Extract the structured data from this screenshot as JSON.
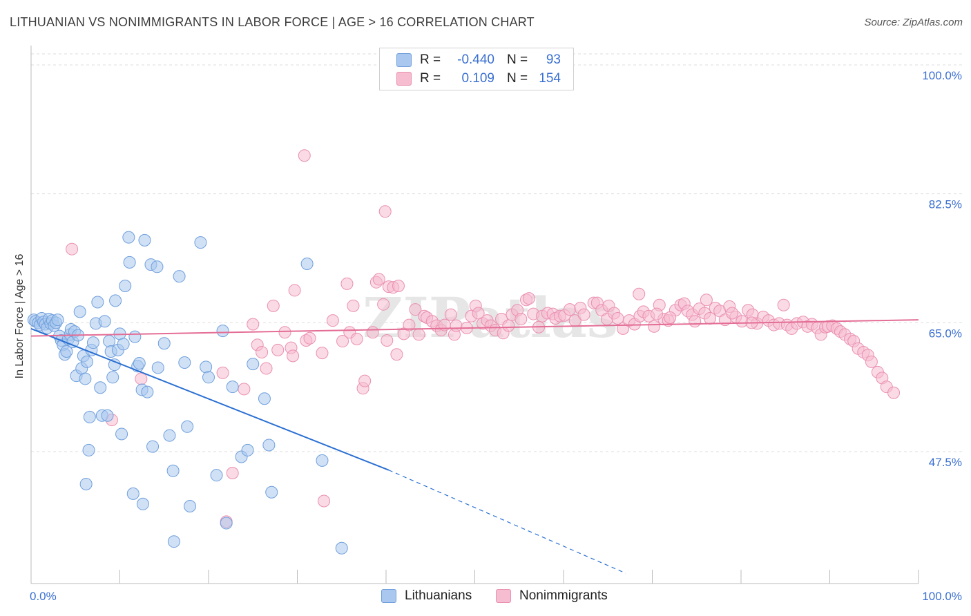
{
  "title": "LITHUANIAN VS NONIMMIGRANTS IN LABOR FORCE | AGE > 16 CORRELATION CHART",
  "source": "Source: ZipAtlas.com",
  "watermark": "ZIPatlas",
  "legend": {
    "rows": [
      {
        "r_label": "R =",
        "r_value": "-0.440",
        "n_label": "N =",
        "n_value": "93"
      },
      {
        "r_label": "R =",
        "r_value": "0.109",
        "n_label": "N =",
        "n_value": "154"
      }
    ]
  },
  "bottom_legend": [
    "Lithuanians",
    "Nonimmigrants"
  ],
  "colors": {
    "blue_fill": "#aac8ef",
    "blue_stroke": "#6f9fdc",
    "blue_line": "#2a6fd3",
    "pink_fill": "#f6bcd0",
    "pink_stroke": "#ea90b1",
    "pink_line": "#e46d95",
    "axis_text": "#3a6fd1",
    "grid": "#dddddd"
  },
  "chart_data": {
    "type": "scatter",
    "title": "LITHUANIAN VS NONIMMIGRANTS IN LABOR FORCE | AGE > 16 CORRELATION CHART",
    "xlabel": "",
    "ylabel": "In Labor Force | Age > 16",
    "xlim": [
      0,
      100
    ],
    "ylim": [
      29.6,
      101.5
    ],
    "x_tick_labels": [
      "0.0%",
      "100.0%"
    ],
    "y_ticks": [
      47.5,
      65.0,
      82.5,
      100.0
    ],
    "y_tick_labels": [
      "47.5%",
      "65.0%",
      "82.5%",
      "100.0%"
    ],
    "series": [
      {
        "name": "Lithuanians",
        "r": -0.44,
        "n": 93,
        "trend": {
          "x0": 0,
          "y0": 64.2,
          "x1": 40.3,
          "y1": 45.0,
          "dash_to_x": 67.0,
          "dash_to_y": 31.0
        },
        "points": [
          [
            0.3,
            65.4
          ],
          [
            0.5,
            65.2
          ],
          [
            0.8,
            65.0
          ],
          [
            1.0,
            64.7
          ],
          [
            1.2,
            65.6
          ],
          [
            1.4,
            65.1
          ],
          [
            1.6,
            64.8
          ],
          [
            1.8,
            64.3
          ],
          [
            2.0,
            65.5
          ],
          [
            2.2,
            64.9
          ],
          [
            2.4,
            65.3
          ],
          [
            2.6,
            64.6
          ],
          [
            2.8,
            65.0
          ],
          [
            3.0,
            65.4
          ],
          [
            3.2,
            63.2
          ],
          [
            3.4,
            62.6
          ],
          [
            3.6,
            62.0
          ],
          [
            3.8,
            60.7
          ],
          [
            4.0,
            61.1
          ],
          [
            4.2,
            62.8
          ],
          [
            4.4,
            63.4
          ],
          [
            4.5,
            64.1
          ],
          [
            4.7,
            62.4
          ],
          [
            4.9,
            63.8
          ],
          [
            5.1,
            57.8
          ],
          [
            5.3,
            63.3
          ],
          [
            5.5,
            66.5
          ],
          [
            5.7,
            58.8
          ],
          [
            5.9,
            60.5
          ],
          [
            6.1,
            57.4
          ],
          [
            6.3,
            59.7
          ],
          [
            6.5,
            47.7
          ],
          [
            6.2,
            43.1
          ],
          [
            6.8,
            61.3
          ],
          [
            7.0,
            62.3
          ],
          [
            6.6,
            52.2
          ],
          [
            7.3,
            64.9
          ],
          [
            7.5,
            67.8
          ],
          [
            7.8,
            56.2
          ],
          [
            8.0,
            52.4
          ],
          [
            8.3,
            65.2
          ],
          [
            8.6,
            52.4
          ],
          [
            8.8,
            62.5
          ],
          [
            9.0,
            61.1
          ],
          [
            9.2,
            57.6
          ],
          [
            9.4,
            59.3
          ],
          [
            9.5,
            68.0
          ],
          [
            9.8,
            61.3
          ],
          [
            10.0,
            63.5
          ],
          [
            10.2,
            49.9
          ],
          [
            10.4,
            62.1
          ],
          [
            10.6,
            70.0
          ],
          [
            11.0,
            76.6
          ],
          [
            11.1,
            73.2
          ],
          [
            11.5,
            41.8
          ],
          [
            11.7,
            63.1
          ],
          [
            12.0,
            59.1
          ],
          [
            12.2,
            59.5
          ],
          [
            12.5,
            55.9
          ],
          [
            12.8,
            76.2
          ],
          [
            12.6,
            40.4
          ],
          [
            13.1,
            55.6
          ],
          [
            13.5,
            72.9
          ],
          [
            14.2,
            72.6
          ],
          [
            13.7,
            48.2
          ],
          [
            14.3,
            58.9
          ],
          [
            15.0,
            62.2
          ],
          [
            15.6,
            49.7
          ],
          [
            16.0,
            44.9
          ],
          [
            16.1,
            35.3
          ],
          [
            16.7,
            71.3
          ],
          [
            17.3,
            59.6
          ],
          [
            17.6,
            50.9
          ],
          [
            17.9,
            40.1
          ],
          [
            19.1,
            75.9
          ],
          [
            19.7,
            59.0
          ],
          [
            20.0,
            57.6
          ],
          [
            20.9,
            44.3
          ],
          [
            21.6,
            63.9
          ],
          [
            22.0,
            37.8
          ],
          [
            22.7,
            56.3
          ],
          [
            23.7,
            46.8
          ],
          [
            24.4,
            47.7
          ],
          [
            25.0,
            59.4
          ],
          [
            26.3,
            54.7
          ],
          [
            26.8,
            48.4
          ],
          [
            27.1,
            42.0
          ],
          [
            31.1,
            73.0
          ],
          [
            32.8,
            46.3
          ],
          [
            35.0,
            34.4
          ]
        ]
      },
      {
        "name": "Nonimmigrants",
        "r": 0.109,
        "n": 154,
        "trend": {
          "x0": 0,
          "y0": 63.2,
          "x1": 100,
          "y1": 65.4
        },
        "points": [
          [
            4.6,
            75.0
          ],
          [
            9.1,
            51.8
          ],
          [
            12.4,
            57.4
          ],
          [
            21.6,
            58.2
          ],
          [
            22.0,
            38.0
          ],
          [
            22.7,
            44.6
          ],
          [
            24.0,
            56.0
          ],
          [
            25.0,
            64.8
          ],
          [
            25.5,
            62.0
          ],
          [
            26.0,
            61.0
          ],
          [
            26.5,
            58.8
          ],
          [
            27.3,
            67.3
          ],
          [
            27.8,
            61.3
          ],
          [
            28.6,
            63.7
          ],
          [
            29.3,
            61.6
          ],
          [
            29.5,
            60.5
          ],
          [
            29.7,
            69.4
          ],
          [
            30.8,
            87.7
          ],
          [
            31.0,
            62.6
          ],
          [
            31.4,
            62.9
          ],
          [
            32.8,
            60.9
          ],
          [
            33.0,
            40.8
          ],
          [
            34.0,
            65.3
          ],
          [
            35.1,
            62.5
          ],
          [
            35.6,
            70.3
          ],
          [
            35.9,
            63.7
          ],
          [
            36.3,
            67.3
          ],
          [
            36.7,
            62.8
          ],
          [
            37.4,
            56.1
          ],
          [
            37.6,
            57.1
          ],
          [
            38.5,
            63.7
          ],
          [
            38.9,
            70.5
          ],
          [
            39.2,
            70.9
          ],
          [
            39.7,
            67.5
          ],
          [
            39.9,
            80.1
          ],
          [
            40.1,
            62.6
          ],
          [
            40.3,
            69.9
          ],
          [
            40.8,
            69.8
          ],
          [
            41.4,
            70.0
          ],
          [
            41.2,
            60.7
          ],
          [
            42.0,
            63.5
          ],
          [
            42.6,
            64.7
          ],
          [
            43.3,
            66.8
          ],
          [
            43.7,
            63.4
          ],
          [
            44.3,
            65.9
          ],
          [
            44.6,
            65.7
          ],
          [
            45.2,
            65.2
          ],
          [
            45.7,
            64.6
          ],
          [
            46.2,
            64.0
          ],
          [
            46.6,
            64.7
          ],
          [
            47.3,
            66.1
          ],
          [
            47.7,
            63.4
          ],
          [
            47.9,
            64.6
          ],
          [
            49.1,
            64.3
          ],
          [
            49.6,
            65.9
          ],
          [
            50.1,
            67.3
          ],
          [
            50.4,
            66.3
          ],
          [
            50.9,
            64.9
          ],
          [
            51.4,
            65.3
          ],
          [
            51.8,
            64.6
          ],
          [
            52.3,
            64.0
          ],
          [
            53.0,
            65.5
          ],
          [
            53.2,
            63.6
          ],
          [
            53.8,
            64.6
          ],
          [
            54.2,
            66.1
          ],
          [
            54.8,
            66.7
          ],
          [
            55.2,
            65.5
          ],
          [
            55.8,
            68.1
          ],
          [
            56.1,
            68.3
          ],
          [
            56.6,
            66.2
          ],
          [
            57.2,
            64.4
          ],
          [
            57.6,
            65.9
          ],
          [
            58.2,
            66.3
          ],
          [
            58.8,
            66.2
          ],
          [
            59.1,
            65.6
          ],
          [
            59.6,
            65.9
          ],
          [
            60.1,
            66.0
          ],
          [
            60.7,
            66.8
          ],
          [
            61.3,
            65.3
          ],
          [
            61.9,
            67.0
          ],
          [
            62.3,
            66.1
          ],
          [
            63.4,
            67.7
          ],
          [
            63.8,
            67.7
          ],
          [
            64.3,
            66.7
          ],
          [
            64.9,
            65.5
          ],
          [
            65.1,
            67.3
          ],
          [
            65.7,
            66.3
          ],
          [
            66.1,
            65.6
          ],
          [
            66.7,
            64.2
          ],
          [
            67.4,
            65.3
          ],
          [
            68.0,
            64.8
          ],
          [
            68.6,
            65.9
          ],
          [
            69.0,
            66.5
          ],
          [
            69.6,
            65.9
          ],
          [
            70.2,
            64.5
          ],
          [
            70.8,
            67.4
          ],
          [
            71.3,
            65.5
          ],
          [
            71.8,
            65.3
          ],
          [
            72.6,
            66.7
          ],
          [
            73.2,
            67.4
          ],
          [
            73.6,
            67.6
          ],
          [
            74.0,
            66.6
          ],
          [
            74.5,
            66.1
          ],
          [
            75.3,
            66.9
          ],
          [
            75.9,
            66.3
          ],
          [
            76.5,
            65.6
          ],
          [
            77.1,
            67.0
          ],
          [
            77.6,
            66.6
          ],
          [
            78.2,
            65.4
          ],
          [
            78.7,
            67.2
          ],
          [
            79.4,
            65.8
          ],
          [
            80.1,
            65.2
          ],
          [
            80.8,
            66.7
          ],
          [
            81.3,
            66.1
          ],
          [
            81.8,
            64.9
          ],
          [
            82.5,
            65.8
          ],
          [
            83.1,
            65.3
          ],
          [
            83.7,
            64.7
          ],
          [
            84.3,
            64.9
          ],
          [
            84.8,
            67.4
          ],
          [
            85.2,
            64.7
          ],
          [
            85.7,
            64.2
          ],
          [
            86.3,
            64.9
          ],
          [
            87.0,
            65.1
          ],
          [
            87.5,
            64.5
          ],
          [
            88.0,
            64.8
          ],
          [
            88.6,
            64.3
          ],
          [
            89.0,
            63.4
          ],
          [
            89.5,
            64.4
          ],
          [
            89.8,
            64.5
          ],
          [
            90.3,
            64.6
          ],
          [
            90.8,
            64.2
          ],
          [
            91.2,
            63.8
          ],
          [
            91.7,
            63.4
          ],
          [
            92.3,
            62.8
          ],
          [
            92.7,
            62.5
          ],
          [
            93.2,
            61.5
          ],
          [
            93.8,
            61.0
          ],
          [
            94.3,
            60.6
          ],
          [
            94.7,
            59.7
          ],
          [
            95.4,
            58.3
          ],
          [
            95.9,
            57.5
          ],
          [
            96.4,
            56.3
          ],
          [
            97.2,
            55.5
          ],
          [
            68.5,
            68.9
          ],
          [
            70.5,
            66.2
          ],
          [
            72.0,
            65.7
          ],
          [
            74.8,
            65.2
          ],
          [
            76.1,
            68.1
          ],
          [
            79.0,
            66.3
          ],
          [
            81.2,
            65.0
          ]
        ]
      }
    ]
  }
}
